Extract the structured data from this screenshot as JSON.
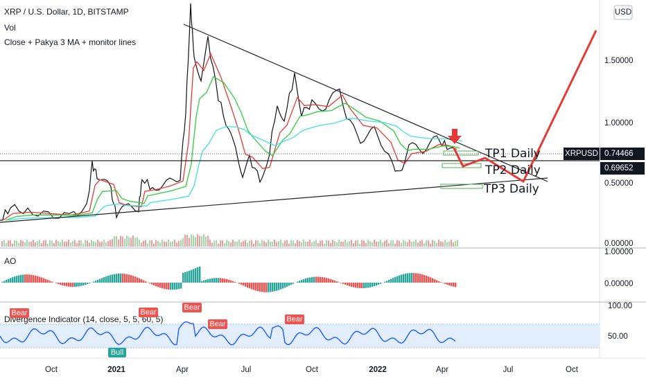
{
  "header": {
    "symbol": "XRP / U.S. Dollar, 1D, BITSTAMP",
    "indicators": [
      "Vol",
      "Close + Pakya 3 MA + monitor lines"
    ]
  },
  "currency": "USD",
  "price_axis": [
    "1.50000",
    "1.00000",
    "0.50000",
    "0.00000"
  ],
  "price_tags": {
    "symbol": "XRPUSD",
    "last": "0.74466",
    "line": "0.69652"
  },
  "targets": [
    "TP1 Daily",
    "TP2 Daily",
    "TP3 Daily"
  ],
  "ao": {
    "title": "AO",
    "axis": [
      "1.00000",
      "0.00000"
    ]
  },
  "divergence": {
    "title": "Divergence Indicator (14, close, 5, 5, 60, 5)",
    "axis": [
      "100.00",
      "50.00"
    ],
    "bear_label": "Bear",
    "bull_label": "Bull"
  },
  "time_axis": [
    "Oct",
    "2021",
    "Apr",
    "Jul",
    "Oct",
    "2022",
    "Apr",
    "Jul",
    "Oct"
  ]
}
